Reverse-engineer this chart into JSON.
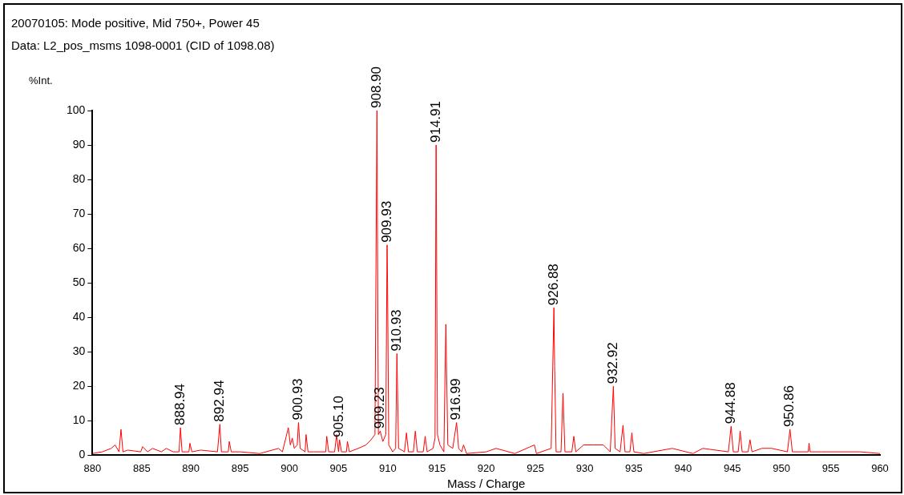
{
  "chart_data": {
    "type": "line",
    "title": "20070105: Mode positive, Mid 750+, Power 45",
    "subtitle": "Data: L2_pos_msms 1098-0001 (CID of 1098.08)",
    "xlabel": "Mass / Charge",
    "ylabel": "%Int.",
    "color": "#ff0000",
    "marker": "none",
    "grid": false,
    "legend": false,
    "xlim": [
      880,
      960
    ],
    "xticks": [
      880,
      885,
      890,
      895,
      900,
      905,
      910,
      915,
      920,
      925,
      930,
      935,
      940,
      945,
      950,
      955,
      960
    ],
    "ylim": [
      0,
      100
    ],
    "yticks": [
      0,
      10,
      20,
      30,
      40,
      50,
      60,
      70,
      80,
      90,
      100
    ],
    "x": [
      880,
      881,
      881.9,
      882.3,
      882.7,
      882.9,
      883.1,
      883.6,
      884.9,
      885.1,
      885.6,
      886.1,
      887,
      887.5,
      888.2,
      888.8,
      888.94,
      889.1,
      889.8,
      889.9,
      890.1,
      891,
      892.7,
      892.94,
      893.1,
      893.8,
      893.9,
      894.1,
      895,
      897,
      898.9,
      899.3,
      899.9,
      900.1,
      900.3,
      900.5,
      900.8,
      900.93,
      901.1,
      901.6,
      901.7,
      901.9,
      902.5,
      903.7,
      903.8,
      904,
      904.6,
      904.8,
      905,
      905.1,
      905.3,
      905.8,
      905.9,
      906.1,
      907,
      907.8,
      908.3,
      908.7,
      908.9,
      909.05,
      909.23,
      909.5,
      909.8,
      909.93,
      909.98,
      910.1,
      910.5,
      910.8,
      910.93,
      911.1,
      911.7,
      911.9,
      912.1,
      912.6,
      912.8,
      913,
      913.6,
      913.8,
      914,
      914.6,
      914.8,
      914.91,
      915.05,
      915.3,
      915.7,
      915.9,
      916.1,
      916.6,
      916.99,
      917.2,
      917.5,
      917.7,
      918,
      920,
      921,
      922.9,
      924.9,
      925.1,
      926.6,
      926.88,
      926.95,
      927.1,
      927.6,
      927.8,
      928,
      928.7,
      928.9,
      929.1,
      929.9,
      930.9,
      931.9,
      932.6,
      932.92,
      933.1,
      933.6,
      933.9,
      934.1,
      934.6,
      934.8,
      935,
      936,
      938.9,
      941,
      942,
      944.6,
      944.88,
      945.1,
      945.6,
      945.8,
      946,
      946.6,
      946.8,
      947,
      948,
      949,
      950.6,
      950.86,
      951.1,
      952.7,
      952.8,
      952.9,
      954,
      956,
      958,
      960
    ],
    "values": [
      0.5,
      1,
      2,
      3,
      1,
      7.5,
      1,
      1.5,
      1,
      2.5,
      1,
      2,
      1,
      2,
      1,
      1,
      8,
      1,
      1,
      3.5,
      1,
      1.5,
      1,
      9,
      1,
      1,
      4,
      1,
      1,
      0.5,
      2,
      1,
      8,
      3,
      5,
      2,
      3,
      9.5,
      2,
      1,
      6,
      1,
      1,
      1,
      5.5,
      1,
      1,
      6,
      1,
      4.5,
      1,
      1,
      4,
      1,
      2,
      3,
      4.5,
      6,
      100,
      6,
      7,
      4,
      6,
      61,
      50,
      3,
      1,
      2,
      29.5,
      2,
      1,
      6.5,
      1,
      1,
      7,
      1,
      1,
      5.5,
      1,
      2,
      5,
      90,
      6,
      3,
      1,
      38,
      3,
      2,
      9.5,
      2,
      1,
      3,
      0.5,
      1,
      2,
      0.5,
      3,
      0.5,
      2,
      42.8,
      26,
      1,
      1,
      18,
      1,
      1,
      5.5,
      1,
      3,
      3,
      3,
      1,
      20,
      2,
      1,
      8.7,
      1,
      1,
      6.5,
      1,
      0.5,
      2,
      0.5,
      2,
      1,
      8.4,
      1,
      1,
      7,
      1,
      1,
      4.5,
      1,
      2,
      2,
      1,
      7.5,
      1,
      1,
      3.5,
      1,
      1,
      1,
      1,
      0.5
    ],
    "annotations": [
      {
        "text": "888.94",
        "x": 888.94,
        "y": 8
      },
      {
        "text": "892.94",
        "x": 892.94,
        "y": 9
      },
      {
        "text": "900.93",
        "x": 900.93,
        "y": 9.5
      },
      {
        "text": "905.10",
        "x": 905.1,
        "y": 4.5
      },
      {
        "text": "908.90",
        "x": 908.9,
        "y": 100
      },
      {
        "text": "909.23",
        "x": 909.23,
        "y": 7
      },
      {
        "text": "909.93",
        "x": 909.93,
        "y": 61
      },
      {
        "text": "910.93",
        "x": 910.93,
        "y": 29.5
      },
      {
        "text": "914.91",
        "x": 914.91,
        "y": 90
      },
      {
        "text": "916.99",
        "x": 916.99,
        "y": 9.5
      },
      {
        "text": "926.88",
        "x": 926.88,
        "y": 42.8
      },
      {
        "text": "932.92",
        "x": 932.92,
        "y": 20
      },
      {
        "text": "944.88",
        "x": 944.88,
        "y": 8.4
      },
      {
        "text": "950.86",
        "x": 950.86,
        "y": 7.5
      }
    ]
  }
}
